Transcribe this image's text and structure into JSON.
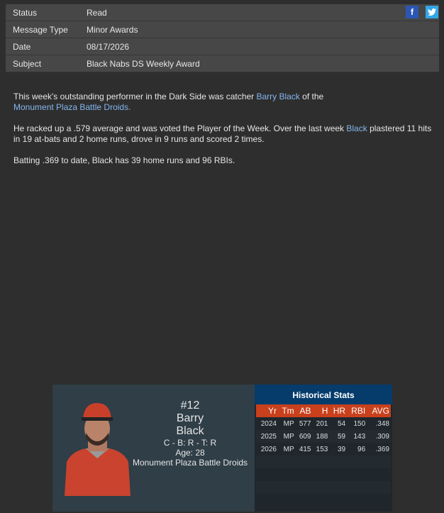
{
  "meta": [
    {
      "label": "Status",
      "value": "Read"
    },
    {
      "label": "Message Type",
      "value": "Minor Awards"
    },
    {
      "label": "Date",
      "value": "08/17/2026"
    },
    {
      "label": "Subject",
      "value": "Black Nabs DS Weekly Award"
    }
  ],
  "social": {
    "facebook": "f",
    "twitter": "t"
  },
  "body": {
    "p1a": "This week's outstanding performer in the Dark Side was catcher ",
    "p1link": "Barry Black",
    "p1b": " of the ",
    "p1team": "Monument Plaza Battle Droids",
    "p1c": ".",
    "p2a": "He racked up a .579 average and was voted the Player of the Week. Over the last week ",
    "p2link": "Black",
    "p2b": " plastered 11 hits in 19 at-bats and 2 home runs, drove in 9 runs and scored 2 times.",
    "p3": "Batting .369 to date, Black has 39 home runs and 96 RBIs."
  },
  "player": {
    "number": "#12",
    "first": "Barry",
    "last": "Black",
    "pos": "C - B: R - T: R",
    "age": "Age: 28",
    "team": "Monument Plaza Battle Droids"
  },
  "stats": {
    "title": "Historical Stats",
    "columns": [
      "Yr",
      "Tm",
      "AB",
      "H",
      "HR",
      "RBI",
      "AVG"
    ],
    "rows": [
      [
        "2024",
        "MP",
        "577",
        "201",
        "54",
        "150",
        ".348"
      ],
      [
        "2025",
        "MP",
        "609",
        "188",
        "59",
        "143",
        ".309"
      ],
      [
        "2026",
        "MP",
        "415",
        "153",
        "39",
        "96",
        ".369"
      ]
    ]
  }
}
